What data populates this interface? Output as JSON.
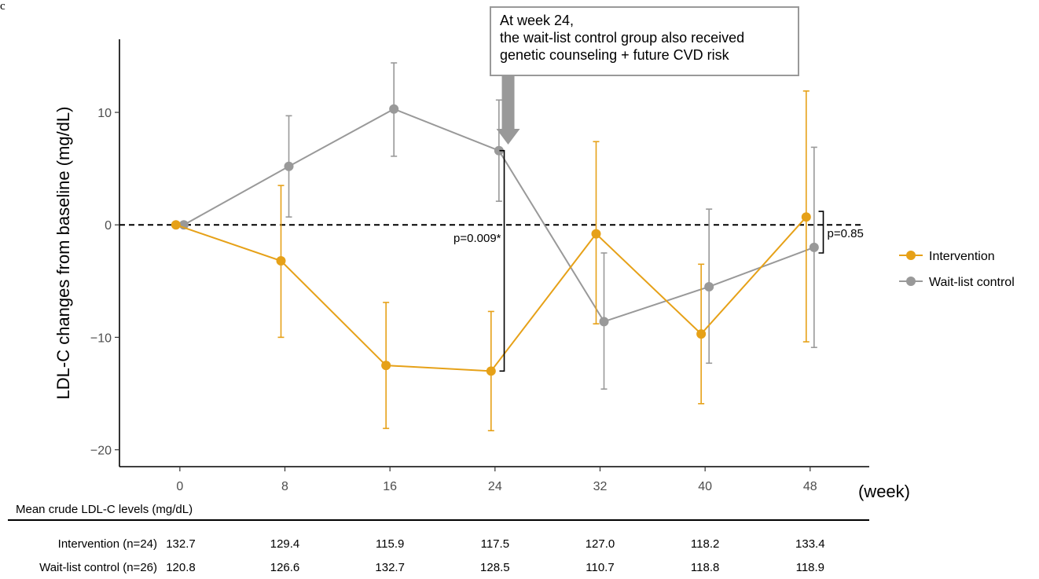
{
  "panel_label": "c",
  "chart_data": {
    "type": "line",
    "ylabel": "LDL-C changes from baseline (mg/dL)",
    "xlabel": "(week)",
    "x": [
      0,
      8,
      16,
      24,
      32,
      40,
      48
    ],
    "x_tick_labels": [
      "0",
      "8",
      "16",
      "24",
      "32",
      "40",
      "48"
    ],
    "ylim": [
      -21.5,
      16.5
    ],
    "xlim": [
      -4.6,
      52.5
    ],
    "y_ticks": [
      10,
      0,
      -10,
      -20
    ],
    "y_tick_labels": [
      "10",
      "0",
      "−10",
      "−20"
    ],
    "reference_line_y": 0,
    "grid": false,
    "legend_position": "right",
    "series": [
      {
        "name": "Intervention",
        "color": "#E6A118",
        "x_offset": -0.3,
        "values": [
          0.0,
          -3.2,
          -12.5,
          -13.0,
          -0.8,
          -9.7,
          0.7
        ],
        "error_lower": [
          0.0,
          -10.0,
          -18.1,
          -18.3,
          -8.8,
          -15.9,
          -10.4
        ],
        "error_upper": [
          0.0,
          3.5,
          -6.9,
          -7.7,
          7.4,
          -3.5,
          11.9
        ]
      },
      {
        "name": "Wait-list control",
        "color": "#999999",
        "x_offset": 0.3,
        "values": [
          0.0,
          5.2,
          10.3,
          6.6,
          -8.6,
          -5.5,
          -2.0
        ],
        "error_lower": [
          0.0,
          0.7,
          6.1,
          2.1,
          -14.6,
          -12.3,
          -10.9
        ],
        "error_upper": [
          0.0,
          9.7,
          14.4,
          11.1,
          -2.5,
          1.4,
          6.9
        ]
      }
    ],
    "annotations": {
      "bracket_week24": {
        "label": "p=0.009*",
        "x": 24.7,
        "y_from": 6.6,
        "y_to": -13.0
      },
      "bracket_week48": {
        "label": "p=0.85",
        "x": 49.0,
        "y_from": 1.2,
        "y_to": -2.5
      },
      "callout_lines": [
        "At week 24,",
        "the wait-list control group also received",
        "genetic counseling + future CVD risk"
      ],
      "callout_arrow_x": 25.0
    },
    "table": {
      "title": "Mean crude LDL-C levels (mg/dL)",
      "rows": [
        {
          "label": "Intervention (n=24)",
          "values": [
            "132.7",
            "129.4",
            "115.9",
            "117.5",
            "127.0",
            "118.2",
            "133.4"
          ]
        },
        {
          "label": "Wait-list control (n=26)",
          "values": [
            "120.8",
            "126.6",
            "132.7",
            "128.5",
            "110.7",
            "118.8",
            "118.9"
          ]
        }
      ]
    }
  }
}
